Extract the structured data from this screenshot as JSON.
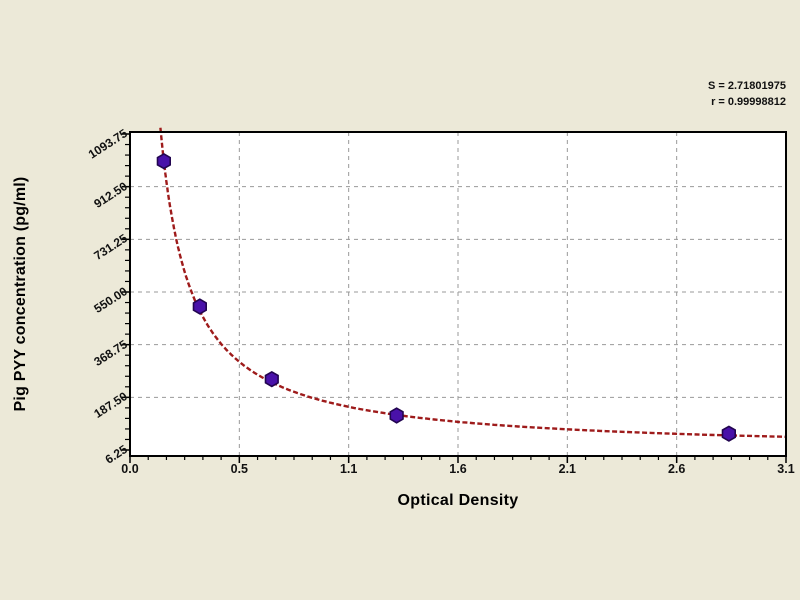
{
  "figure": {
    "background": "#ECE9D8",
    "stats": {
      "s_line": "S = 2.71801975",
      "r_line": "r = 0.99998812"
    }
  },
  "chart_data": {
    "type": "scatter",
    "title": "",
    "xlabel": "Optical Density",
    "ylabel": "Pig PYY concentration (pg/ml)",
    "xlim": [
      0,
      3.1
    ],
    "x_tick_labels": [
      "0.0",
      "0.5",
      "1.1",
      "1.6",
      "2.1",
      "2.6",
      "3.1"
    ],
    "y_tick_values": [
      6.25,
      187.5,
      368.75,
      550.0,
      731.25,
      912.5,
      1093.75
    ],
    "y_tick_labels": [
      "6.25",
      "187.50",
      "368.75",
      "550.00",
      "731.25",
      "912.50",
      "1093.75"
    ],
    "grid": {
      "style": "dashed",
      "color": "#9A9A9A"
    },
    "legend": "none",
    "points": [
      {
        "x": 0.16,
        "y": 1000
      },
      {
        "x": 0.33,
        "y": 500
      },
      {
        "x": 0.67,
        "y": 250
      },
      {
        "x": 1.26,
        "y": 125
      },
      {
        "x": 2.83,
        "y": 62.5
      }
    ],
    "fit_curve": {
      "model": "inverse decay y = a/x (visual fit of plotted curve)",
      "a": 160
    },
    "stats": {
      "S": "2.71801975",
      "r": "0.99998812"
    },
    "colors": {
      "curve": "#9E1B1B",
      "point_fill": "#4911A9",
      "point_stroke": "#220550",
      "frame": "#000000",
      "plot_bg": "#FFFFFF",
      "text": "#111111"
    }
  }
}
